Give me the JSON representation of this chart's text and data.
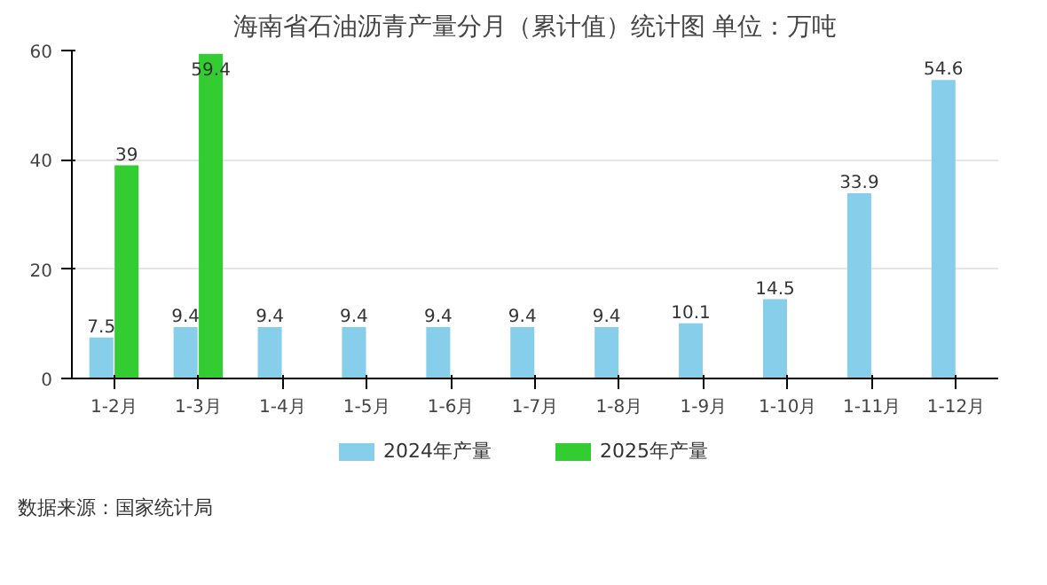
{
  "chart_data": {
    "type": "bar",
    "title": "海南省石油沥青产量分月（累计值）统计图 单位：万吨",
    "categories": [
      "1-2月",
      "1-3月",
      "1-4月",
      "1-5月",
      "1-6月",
      "1-7月",
      "1-8月",
      "1-9月",
      "1-10月",
      "1-11月",
      "1-12月"
    ],
    "series": [
      {
        "name": "2024年产量",
        "color": "#87ceeb",
        "values": [
          7.5,
          9.4,
          9.4,
          9.4,
          9.4,
          9.4,
          9.4,
          10.1,
          14.5,
          33.9,
          54.6
        ]
      },
      {
        "name": "2025年产量",
        "color": "#33cc33",
        "values": [
          39,
          59.4,
          null,
          null,
          null,
          null,
          null,
          null,
          null,
          null,
          null
        ]
      }
    ],
    "ylim": [
      0,
      60
    ],
    "yticks": [
      0,
      20,
      40,
      60
    ],
    "grid": "y",
    "legend": "bottom",
    "data_labels": true,
    "annotations": [
      "数据来源：国家统计局"
    ]
  }
}
